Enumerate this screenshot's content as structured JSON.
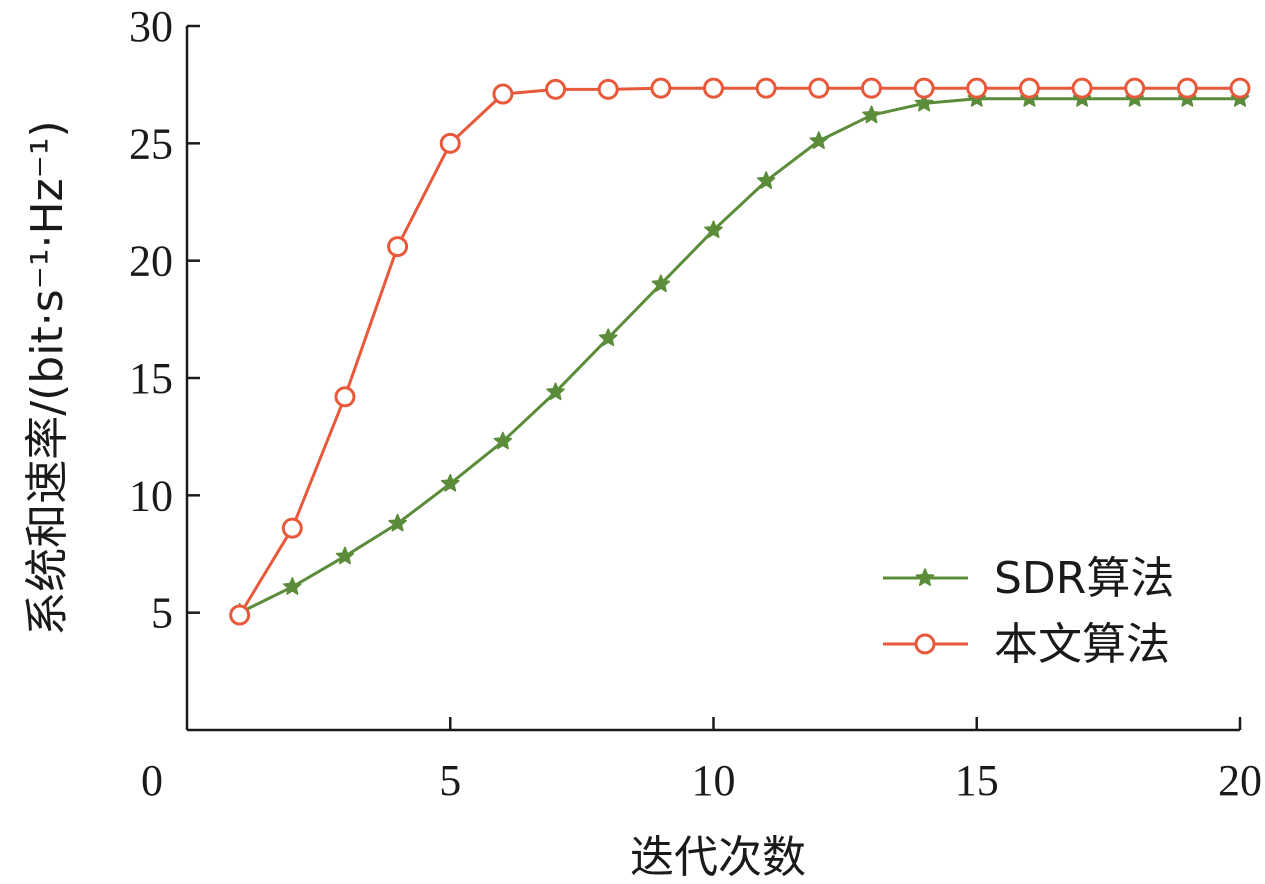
{
  "chart_data": {
    "type": "line",
    "xlabel": "迭代次数",
    "ylabel": "系统和速率/(bit·s⁻¹·Hz⁻¹)",
    "xlim": [
      0,
      20
    ],
    "ylim": [
      0,
      30
    ],
    "x_ticks": [
      0,
      5,
      10,
      15,
      20
    ],
    "y_ticks": [
      5,
      10,
      15,
      20,
      25,
      30
    ],
    "grid": false,
    "legend_position": "bottom-right",
    "x": [
      1,
      2,
      3,
      4,
      5,
      6,
      7,
      8,
      9,
      10,
      11,
      12,
      13,
      14,
      15,
      16,
      17,
      18,
      19,
      20
    ],
    "series": [
      {
        "name": "SDR算法",
        "color": "#5b8c3a",
        "marker": "star",
        "values": [
          5.0,
          6.1,
          7.4,
          8.8,
          10.5,
          12.3,
          14.4,
          16.7,
          19.0,
          21.3,
          23.4,
          25.1,
          26.2,
          26.7,
          26.9,
          26.9,
          26.9,
          26.9,
          26.9,
          26.9
        ]
      },
      {
        "name": "本文算法",
        "color": "#e8583a",
        "marker": "circle",
        "values": [
          4.9,
          8.6,
          14.2,
          20.6,
          25.0,
          27.1,
          27.3,
          27.3,
          27.35,
          27.35,
          27.35,
          27.35,
          27.35,
          27.35,
          27.35,
          27.35,
          27.35,
          27.35,
          27.35,
          27.35
        ]
      }
    ]
  }
}
